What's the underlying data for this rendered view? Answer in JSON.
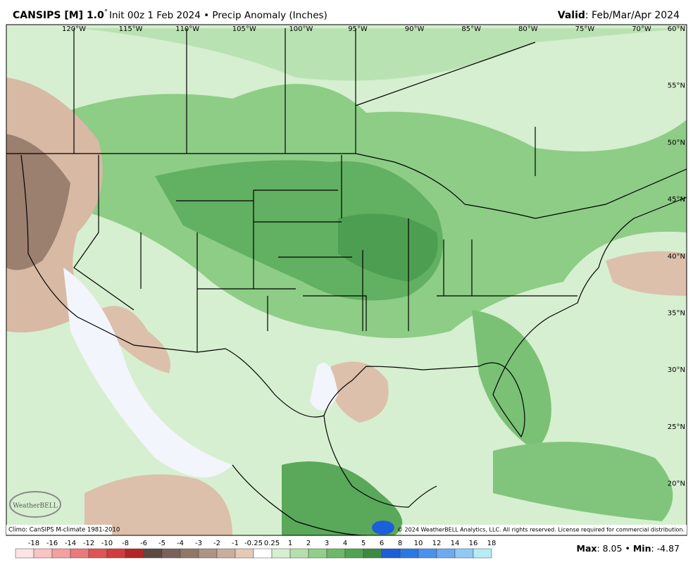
{
  "header": {
    "model": "CANSIPS [M] 1.0",
    "degree": "°",
    "description": "Init 00z 1 Feb 2024 • Precip Anomaly (Inches)",
    "valid_label": "Valid",
    "valid_value": ": Feb/Mar/Apr 2024"
  },
  "map": {
    "longitude_labels": [
      "120°W",
      "115°W",
      "110°W",
      "105°W",
      "100°W",
      "95°W",
      "90°W",
      "85°W",
      "80°W",
      "75°W",
      "70°W"
    ],
    "latitude_labels": [
      "60°N",
      "55°N",
      "50°N",
      "45°N",
      "40°N",
      "35°N",
      "30°N",
      "25°N",
      "20°N"
    ],
    "logo": "WeatherBELL",
    "climo_note": "Climo: CanSIPS M-climate 1981-2010",
    "copyright": "© 2024 WeatherBELL Analytics, LLC. All rights reserved. License required for commercial distribution."
  },
  "colorbar": {
    "labels": [
      "-18",
      "-16",
      "-14",
      "-12",
      "-10",
      "-8",
      "-6",
      "-5",
      "-4",
      "-3",
      "-2",
      "-1",
      "-0.25",
      "0.25",
      "1",
      "2",
      "3",
      "4",
      "5",
      "6",
      "8",
      "10",
      "12",
      "14",
      "16",
      "18"
    ],
    "colors": [
      "#fde3e3",
      "#f9c4c4",
      "#f4a0a0",
      "#ec7a7a",
      "#e05454",
      "#d23c3c",
      "#b42626",
      "#5e4842",
      "#7a625a",
      "#917767",
      "#ad9483",
      "#c9ae9b",
      "#e4cab6",
      "#ffffff",
      "#d6efd0",
      "#b5e0ad",
      "#92cf8a",
      "#6cb968",
      "#50a351",
      "#3b8a43",
      "#1d5fd8",
      "#2a78e6",
      "#4a92ee",
      "#6cabf1",
      "#90c9f5",
      "#b6ecf7"
    ]
  },
  "stats": {
    "max_label": "Max",
    "max_value": ": 8.05",
    "separator": "•",
    "min_label": "Min",
    "min_value": ": -4.87"
  }
}
